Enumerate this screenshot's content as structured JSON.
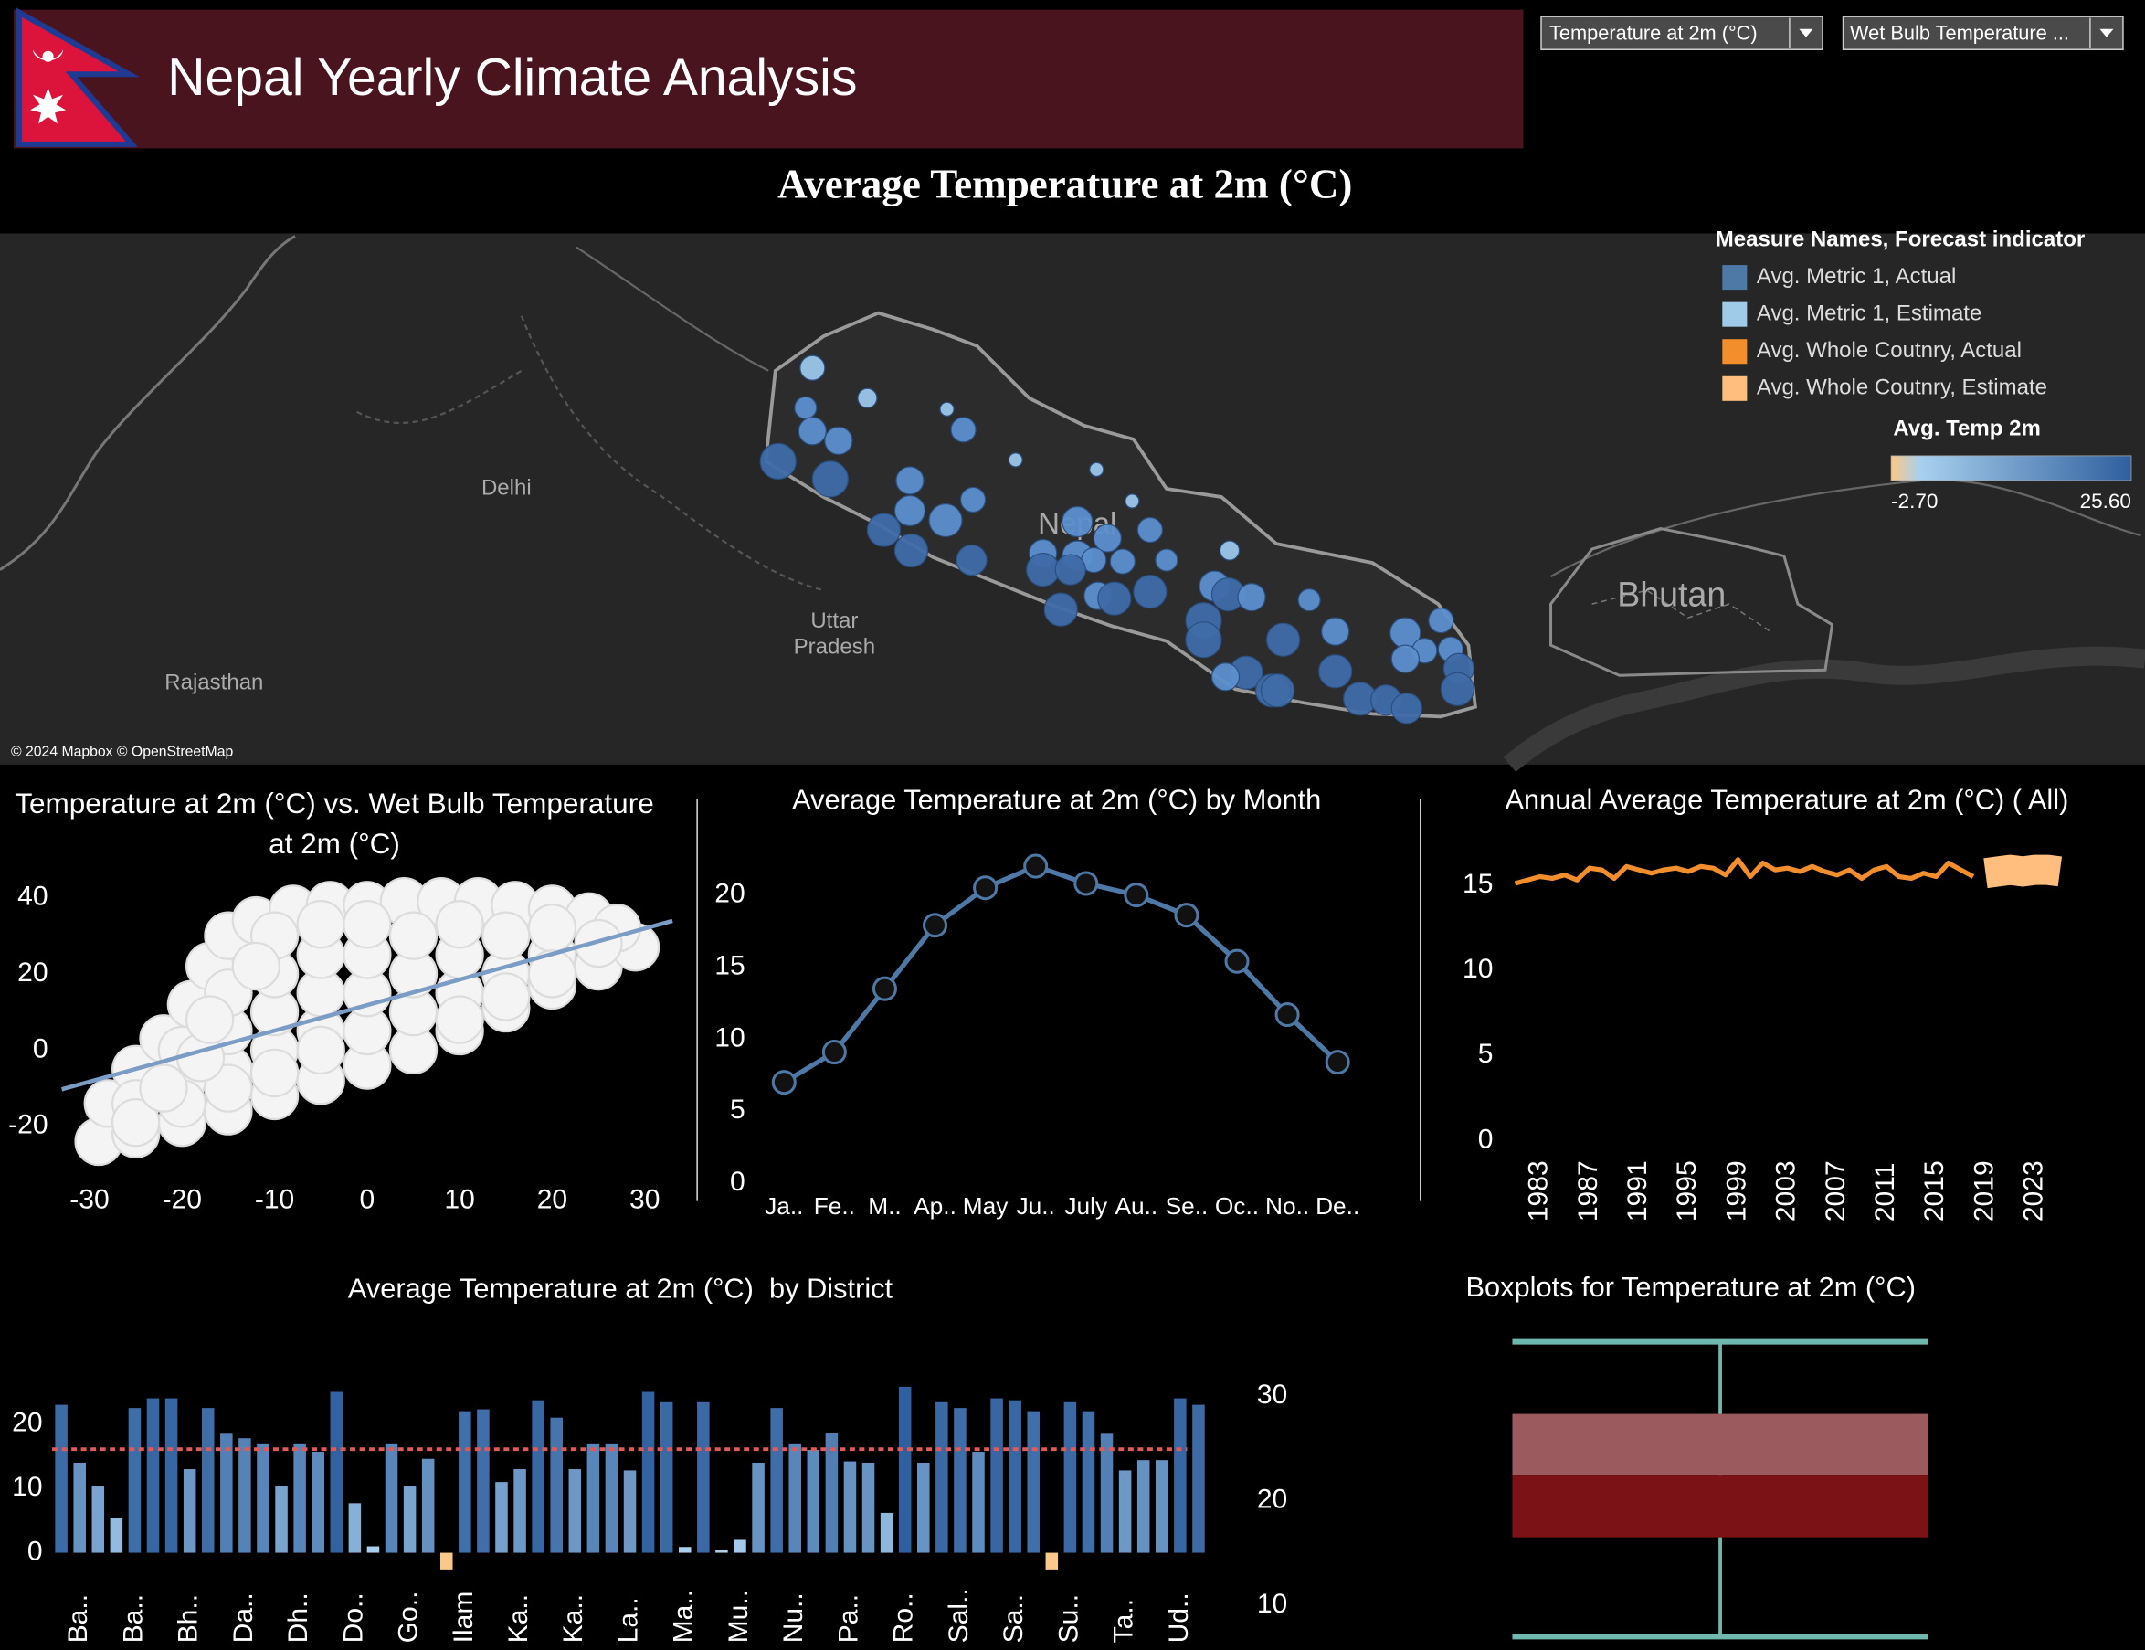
{
  "header": {
    "title": "Nepal Yearly Climate Analysis"
  },
  "filters": [
    "Temperature at 2m (°C)",
    "Wet Bulb Temperature ..."
  ],
  "map": {
    "title": "Average Temperature at 2m (°C)",
    "places": [
      "Delhi",
      "Uttar",
      "Pradesh",
      "Rajasthan",
      "Bhutan",
      "Nepal"
    ],
    "copyright": "© 2024 Mapbox © OpenStreetMap",
    "legend": {
      "title": "Measure Names, Forecast indicator",
      "items": [
        {
          "label": "Avg. Metric 1, Actual",
          "color": "#4e79a7"
        },
        {
          "label": "Avg. Metric 1, Estimate",
          "color": "#a0cbe8"
        },
        {
          "label": "Avg. Whole Coutnry, Actual",
          "color": "#f28e2b"
        },
        {
          "label": "Avg. Whole Coutnry, Estimate",
          "color": "#ffbe7d"
        }
      ]
    },
    "color_legend": {
      "title": "Avg. Temp 2m",
      "colors": [
        "#fcc886",
        "#a9d0ee",
        "#2f5f9e"
      ],
      "ticks": [
        {
          "value": -2.7,
          "label": "-2.70"
        },
        {
          "value": 25.6,
          "label": "25.60"
        }
      ]
    }
  },
  "chart_data": [
    {
      "type": "scatter",
      "title": "Temperature at 2m (°C) vs. Wet Bulb Temperature at 2m (°C)",
      "color": "#f4f4f4",
      "x": [
        -29,
        -25,
        -20,
        -15,
        -10,
        -5,
        0,
        5,
        10,
        15,
        20,
        25,
        29,
        -28,
        -25,
        -22,
        -19,
        -17,
        -15,
        -12,
        -8,
        -4,
        0,
        4,
        8,
        12,
        16,
        20,
        24,
        27,
        -25,
        -20,
        -20,
        -15,
        -15,
        -15,
        -10,
        -10,
        -10,
        -10,
        -5,
        -5,
        -5,
        -5,
        0,
        0,
        0,
        0,
        5,
        5,
        5,
        10,
        10,
        10,
        15,
        15,
        20,
        20,
        25,
        -25,
        -20,
        -15,
        -10,
        -5,
        10,
        15,
        20,
        -22,
        -18,
        -17,
        -12
      ],
      "y": [
        -24,
        -22,
        -19,
        -16,
        -12,
        -8,
        -4,
        0,
        5,
        11,
        17,
        22,
        27,
        -14,
        -5,
        3,
        12,
        22,
        30,
        34,
        37,
        38,
        38,
        39,
        39,
        39,
        38,
        37,
        35,
        32,
        -14,
        -8,
        0,
        -5,
        5,
        15,
        0,
        10,
        20,
        30,
        5,
        15,
        25,
        33,
        5,
        15,
        25,
        33,
        10,
        20,
        30,
        15,
        25,
        33,
        20,
        30,
        25,
        32,
        28,
        -19,
        -14,
        -10,
        -6,
        0,
        8,
        14,
        20,
        -10,
        -2,
        8,
        22
      ],
      "trend": {
        "x": [
          -33,
          33
        ],
        "y": [
          -10.3,
          33.9
        ],
        "color": "#7b9cc4"
      },
      "xlim": [
        -33,
        33
      ],
      "xticks": [
        -30,
        -20,
        -10,
        0,
        10,
        20,
        30
      ],
      "ylim": [
        -27,
        45
      ],
      "yticks": [
        -20,
        0,
        20,
        40
      ]
    },
    {
      "type": "line",
      "title": "Average Temperature at 2m (°C) by Month",
      "color": "#4e79a7",
      "categories": [
        "Ja..",
        "Fe..",
        "M..",
        "Ap..",
        "May",
        "Ju..",
        "July",
        "Au..",
        "Se..",
        "Oc..",
        "No..",
        "De.."
      ],
      "values": [
        7.0,
        9.1,
        13.5,
        17.9,
        20.5,
        22.0,
        20.8,
        20.0,
        18.6,
        15.4,
        11.7,
        8.4
      ],
      "ylim": [
        0,
        24
      ],
      "yticks": [
        0,
        5,
        10,
        15,
        20
      ]
    },
    {
      "type": "line",
      "title": "Annual Average Temperature at 2m (°C) ( All)",
      "x": [
        1981,
        1982,
        1983,
        1984,
        1985,
        1986,
        1987,
        1988,
        1989,
        1990,
        1991,
        1992,
        1993,
        1994,
        1995,
        1996,
        1997,
        1998,
        1999,
        2000,
        2001,
        2002,
        2003,
        2004,
        2005,
        2006,
        2007,
        2008,
        2009,
        2010,
        2011,
        2012,
        2013,
        2014,
        2015,
        2016,
        2017,
        2018,
        2019,
        2020,
        2021,
        2022,
        2023,
        2024,
        2025
      ],
      "series": [
        {
          "color": "#f28e2b",
          "values": [
            15.1,
            15.3,
            15.5,
            15.4,
            15.6,
            15.3,
            16.0,
            15.9,
            15.4,
            16.1,
            15.9,
            15.7,
            15.9,
            16.0,
            15.8,
            16.1,
            16.0,
            15.6,
            16.5,
            15.5,
            16.3,
            15.9,
            16.0,
            15.8,
            16.1,
            15.8,
            15.6,
            15.9,
            15.4,
            15.9,
            16.1,
            15.5,
            15.4,
            15.7,
            15.5,
            16.3,
            15.9,
            15.5,
            null,
            null,
            null,
            null,
            null,
            null,
            null
          ]
        },
        {
          "color": "#ffbe7d",
          "values": [
            null,
            null,
            null,
            null,
            null,
            null,
            null,
            null,
            null,
            null,
            null,
            null,
            null,
            null,
            null,
            null,
            null,
            null,
            null,
            null,
            null,
            null,
            null,
            null,
            null,
            null,
            null,
            null,
            null,
            null,
            null,
            null,
            null,
            null,
            null,
            null,
            null,
            null,
            15.7,
            15.8,
            15.9,
            15.8,
            15.9,
            15.9,
            15.8
          ]
        }
      ],
      "xlim": [
        1980,
        2026
      ],
      "xticks": [
        1983,
        1987,
        1991,
        1995,
        1999,
        2003,
        2007,
        2011,
        2015,
        2019,
        2023
      ],
      "ylim": [
        0,
        17
      ],
      "yticks": [
        0,
        5,
        10,
        15
      ]
    },
    {
      "type": "bar",
      "title": "Average Temperature at 2m (°C)  by District",
      "categories": [
        null,
        "Ba..",
        null,
        null,
        "Ba..",
        null,
        null,
        "Bh..",
        null,
        null,
        "Da..",
        null,
        null,
        "Dh..",
        null,
        null,
        "Do..",
        null,
        null,
        "Go..",
        null,
        null,
        "Ilam",
        null,
        null,
        "Ka..",
        null,
        null,
        "Ka..",
        null,
        null,
        "La..",
        null,
        null,
        "Ma..",
        null,
        null,
        "Mu..",
        null,
        null,
        "Nu..",
        null,
        null,
        "Pa..",
        null,
        null,
        "Ro..",
        null,
        null,
        "Sal..",
        null,
        null,
        "Sa..",
        null,
        null,
        "Su..",
        null,
        null,
        "Ta..",
        null,
        null,
        "Ud..",
        null
      ],
      "values": [
        23,
        14,
        10.3,
        5.4,
        22.5,
        24,
        24,
        13,
        22.5,
        18.5,
        17.8,
        17,
        10.3,
        17,
        15.7,
        25,
        7.7,
        1,
        17,
        10.3,
        14.6,
        -2.6,
        22,
        22.3,
        11,
        13,
        23.7,
        21,
        13,
        17,
        17,
        12.8,
        25,
        23.4,
        0.9,
        23.4,
        0.4,
        2,
        14,
        22.5,
        17,
        16,
        18.6,
        14.2,
        14,
        6.2,
        25.8,
        14,
        23.4,
        22.5,
        15.7,
        24,
        23.7,
        22,
        -2.6,
        23.4,
        22,
        18.5,
        12.8,
        14.4,
        14.4,
        24,
        23
      ],
      "reference": 16.1,
      "reference_color": "#e05a5a",
      "ylim": [
        -4,
        28
      ],
      "yticks": [
        0,
        10,
        20
      ]
    },
    {
      "type": "box",
      "title": "Boxplots for Temperature at 2m (°C)",
      "whisker_low": 7.0,
      "q1": 16.5,
      "median": 22.4,
      "q3": 28.3,
      "whisker_high": 35.2,
      "upper_color": "#9a5a5e",
      "lower_color": "#7a1216",
      "whisker_color": "#6fb8b0",
      "ylim": [
        6,
        37.5
      ],
      "yticks": [
        10,
        20,
        30
      ]
    }
  ]
}
